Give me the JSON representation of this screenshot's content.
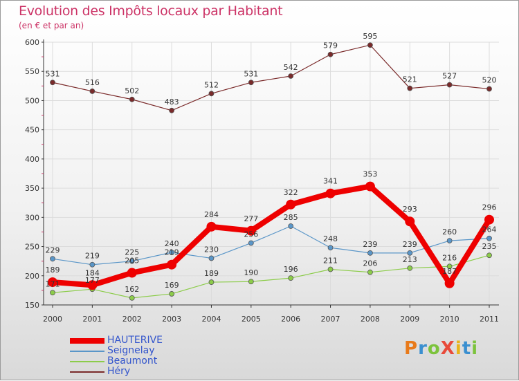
{
  "header": {
    "title": "Evolution des Impôts locaux par Habitant",
    "subtitle": "(en € et par an)"
  },
  "logo": {
    "text": "ProXiti",
    "letters": [
      "P",
      "r",
      "o",
      "X",
      "i",
      "t",
      "i"
    ]
  },
  "chart_data": {
    "type": "line",
    "title": "Evolution des Impôts locaux par Habitant",
    "subtitle": "(en € et par an)",
    "xlabel": "",
    "ylabel": "",
    "x": [
      2000,
      2001,
      2002,
      2003,
      2004,
      2005,
      2006,
      2007,
      2008,
      2009,
      2010,
      2011
    ],
    "ylim": [
      150,
      600
    ],
    "yticks": [
      150,
      200,
      250,
      300,
      350,
      400,
      450,
      500,
      550,
      600
    ],
    "grid": true,
    "legend_position": "bottom-left",
    "series": [
      {
        "name": "Héry",
        "color": "#7a2a2a",
        "values": [
          531,
          516,
          502,
          483,
          512,
          531,
          542,
          579,
          595,
          521,
          527,
          520
        ],
        "labels": [
          "531",
          "516",
          "502",
          "483",
          "512",
          "531",
          "542",
          "579",
          "595",
          "521",
          "527",
          "520"
        ]
      },
      {
        "name": "Seignelay",
        "color": "#5a96c8",
        "values": [
          229,
          219,
          225,
          240,
          230,
          256,
          285,
          248,
          239,
          239,
          260,
          264
        ],
        "labels": [
          "229",
          "219",
          "225",
          "240",
          "230",
          "256",
          "285",
          "248",
          "239",
          "239",
          "260",
          "264"
        ]
      },
      {
        "name": "Beaumont",
        "color": "#8ccc4a",
        "values": [
          171,
          177,
          162,
          169,
          189,
          190,
          196,
          211,
          206,
          213,
          216,
          235
        ],
        "labels": [
          "171",
          "177",
          "162",
          "169",
          "189",
          "190",
          "196",
          "211",
          "206",
          "213",
          "216",
          "235"
        ]
      },
      {
        "name": "HAUTERIVE",
        "color": "#ee0000",
        "values": [
          189,
          184,
          205,
          219,
          284,
          277,
          322,
          341,
          353,
          293,
          187,
          296
        ],
        "labels": [
          "189",
          "184",
          "205",
          "219",
          "284",
          "277",
          "322",
          "341",
          "353",
          "293",
          "187",
          "296"
        ]
      }
    ]
  }
}
